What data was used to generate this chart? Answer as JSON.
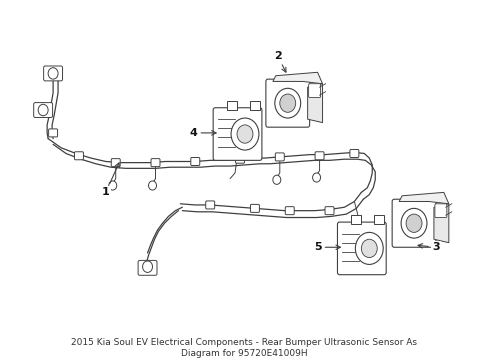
{
  "bg_color": "#ffffff",
  "line_color": "#404040",
  "label_color": "#111111",
  "title_line1": "2015 Kia Soul EV Electrical Components - Rear Bumper Ultrasonic Sensor As",
  "title_line2": "Diagram for 95720E41009H",
  "title_fontsize": 6.5,
  "fig_width": 4.89,
  "fig_height": 3.6,
  "dpi": 100
}
